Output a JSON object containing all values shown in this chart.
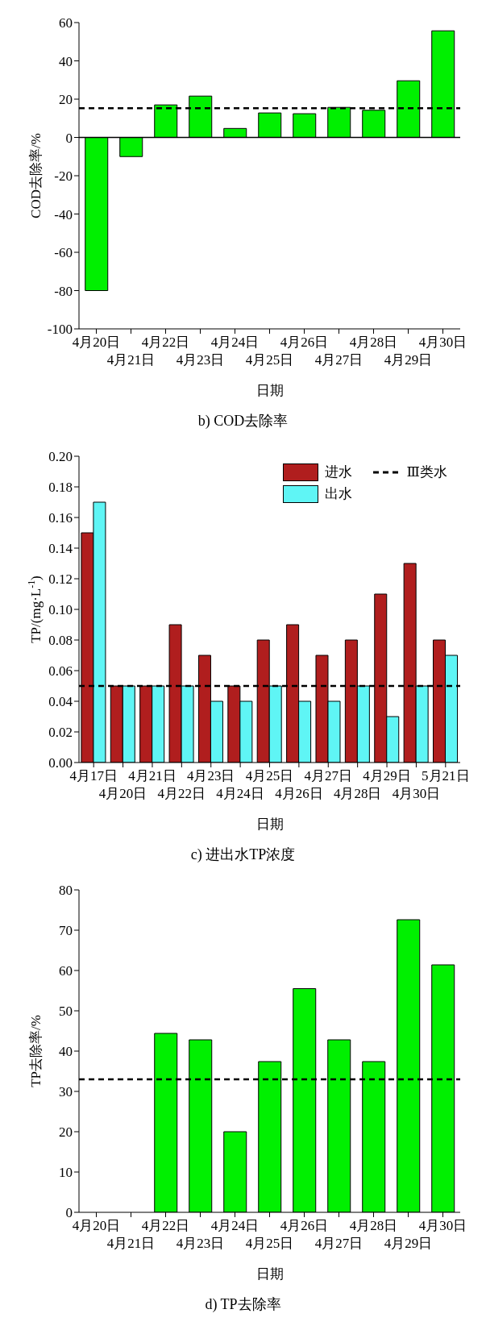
{
  "chart_data": [
    {
      "type": "bar",
      "title": "b) COD去除率",
      "xlabel": "日期",
      "ylabel": "COD去除率/%",
      "categories": [
        "4月20日",
        "4月21日",
        "4月22日",
        "4月23日",
        "4月24日",
        "4月25日",
        "4月26日",
        "4月27日",
        "4月28日",
        "4月29日",
        "4月30日"
      ],
      "series": [
        {
          "color": "#00f000",
          "values": [
            -80,
            -10,
            17,
            21.6,
            4.7,
            12.8,
            12.4,
            15.7,
            14.2,
            29.6,
            55.7
          ]
        }
      ],
      "ylim": [
        -100,
        60
      ],
      "yticks": [
        -100,
        -80,
        -60,
        -40,
        -20,
        0,
        20,
        40,
        60
      ],
      "ref_lines": [
        {
          "axis": "y",
          "value": 15.3,
          "line_style": "dashed",
          "color": "#000000"
        },
        {
          "axis": "y",
          "value": 0,
          "line_style": "solid",
          "color": "#000000"
        }
      ]
    },
    {
      "type": "bar",
      "title": "c) 进出水TP浓度",
      "xlabel": "日期",
      "ylabel": "TP/(mg·L$^{-1}$)",
      "categories": [
        "4月17日",
        "4月20日",
        "4月21日",
        "4月22日",
        "4月23日",
        "4月24日",
        "4月25日",
        "4月26日",
        "4月27日",
        "4月28日",
        "4月29日",
        "4月30日",
        "5月21日"
      ],
      "series": [
        {
          "name": "进水",
          "color": "#b01e1e",
          "values": [
            0.15,
            0.05,
            0.05,
            0.09,
            0.07,
            0.05,
            0.08,
            0.09,
            0.07,
            0.08,
            0.11,
            0.13,
            0.08
          ]
        },
        {
          "name": "出水",
          "color": "#5ff5f5",
          "values": [
            0.17,
            0.05,
            0.05,
            0.05,
            0.04,
            0.04,
            0.05,
            0.04,
            0.04,
            0.05,
            0.03,
            0.05,
            0.07
          ]
        }
      ],
      "ylim": [
        0,
        0.2
      ],
      "yticks": [
        {
          "value": 0,
          "label": "0.00"
        },
        {
          "value": 0.02,
          "label": "0.02"
        },
        {
          "value": 0.04,
          "label": "0.04"
        },
        {
          "value": 0.06,
          "label": "0.06"
        },
        {
          "value": 0.08,
          "label": "0.08"
        },
        {
          "value": 0.1,
          "label": "0.10"
        },
        {
          "value": 0.12,
          "label": "0.12"
        },
        {
          "value": 0.14,
          "label": "0.14"
        },
        {
          "value": 0.16,
          "label": "0.16"
        },
        {
          "value": 0.18,
          "label": "0.18"
        },
        {
          "value": 0.2,
          "label": "0.20"
        }
      ],
      "legend": "top right",
      "ref_lines": [
        {
          "axis": "y",
          "value": 0.05,
          "label": "Ⅲ类水",
          "line_style": "dashed",
          "color": "#000000"
        }
      ]
    },
    {
      "type": "bar",
      "title": "d) TP去除率",
      "xlabel": "日期",
      "ylabel": "TP去除率/%",
      "categories": [
        "4月20日",
        "4月21日",
        "4月22日",
        "4月23日",
        "4月24日",
        "4月25日",
        "4月26日",
        "4月27日",
        "4月28日",
        "4月29日",
        "4月30日"
      ],
      "series": [
        {
          "color": "#00f000",
          "values": [
            null,
            null,
            44.4,
            42.8,
            20,
            37.4,
            55.5,
            42.8,
            37.4,
            72.6,
            61.4
          ]
        }
      ],
      "ylim": [
        0,
        80
      ],
      "yticks": [
        0,
        10,
        20,
        30,
        40,
        50,
        60,
        70,
        80
      ],
      "ref_lines": [
        {
          "axis": "y",
          "value": 33,
          "line_style": "dashed",
          "color": "#000000"
        }
      ]
    }
  ]
}
